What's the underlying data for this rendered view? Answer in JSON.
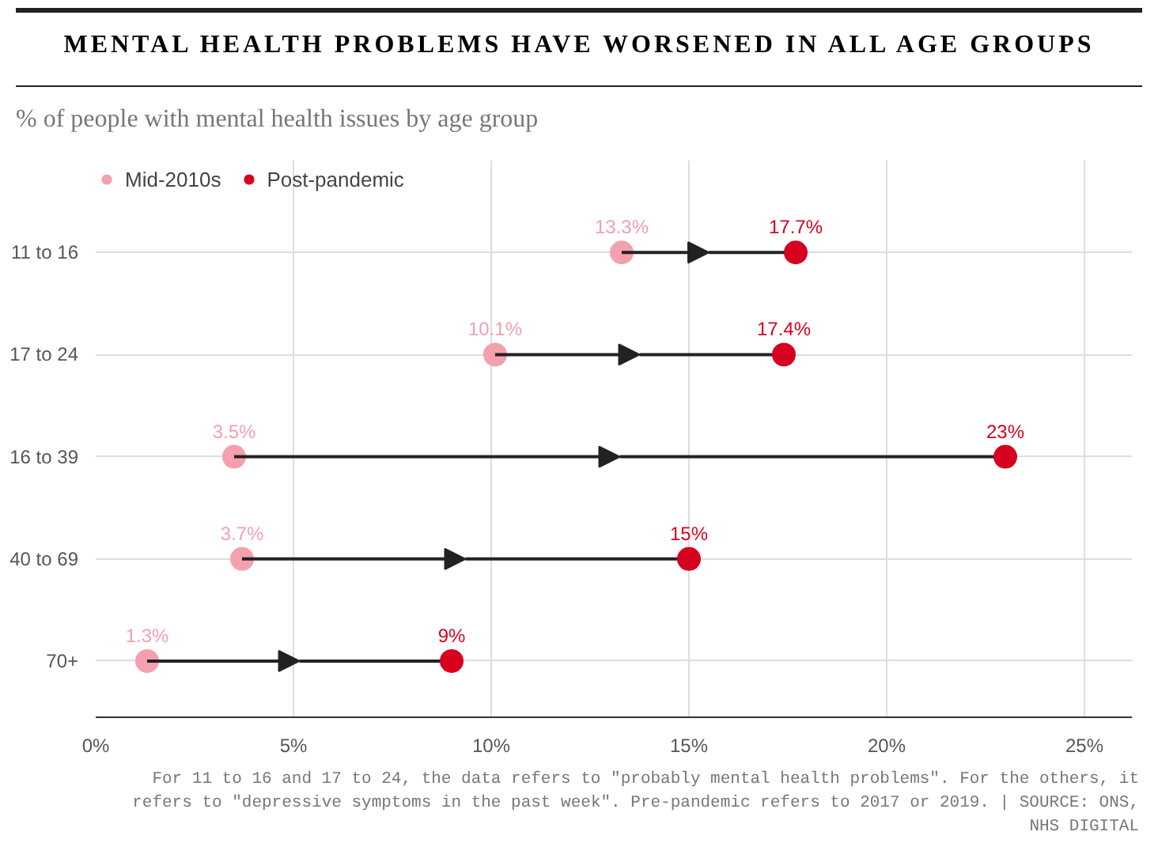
{
  "chart_data": {
    "type": "scatter",
    "orientation": "horizontal",
    "title": "MENTAL HEALTH PROBLEMS HAVE WORSENED IN ALL AGE GROUPS",
    "subtitle": "% of people with mental health issues by age group",
    "categories": [
      "11 to 16",
      "17 to 24",
      "16 to 39",
      "40 to 69",
      "70+"
    ],
    "series": [
      {
        "name": "Mid-2010s",
        "color": "#f4a0ae",
        "values": [
          13.3,
          10.1,
          3.5,
          3.7,
          1.3
        ],
        "value_labels": [
          "13.3%",
          "10.1%",
          "3.5%",
          "3.7%",
          "1.3%"
        ]
      },
      {
        "name": "Post-pandemic",
        "color": "#d7001f",
        "values": [
          17.7,
          17.4,
          23,
          15,
          9
        ],
        "value_labels": [
          "17.7%",
          "17.4%",
          "23%",
          "15%",
          "9%"
        ]
      }
    ],
    "xlim": [
      0,
      26.2
    ],
    "xticks": [
      {
        "value": 0,
        "label": "0%"
      },
      {
        "value": 5,
        "label": "5%"
      },
      {
        "value": 10,
        "label": "10%"
      },
      {
        "value": 15,
        "label": "15%"
      },
      {
        "value": 20,
        "label": "20%"
      },
      {
        "value": 25,
        "label": "25%"
      }
    ],
    "grid": true,
    "legend": "top left",
    "marker": "circle",
    "annotations": [
      "For 11 to 16 and 17 to 24, the data refers to \"probably mental health problems\". For the others, it refers to \"depressive symptoms in the past week\". Pre-pandemic refers to 2017 or 2019. | SOURCE: ONS, NHS DIGITAL"
    ]
  }
}
